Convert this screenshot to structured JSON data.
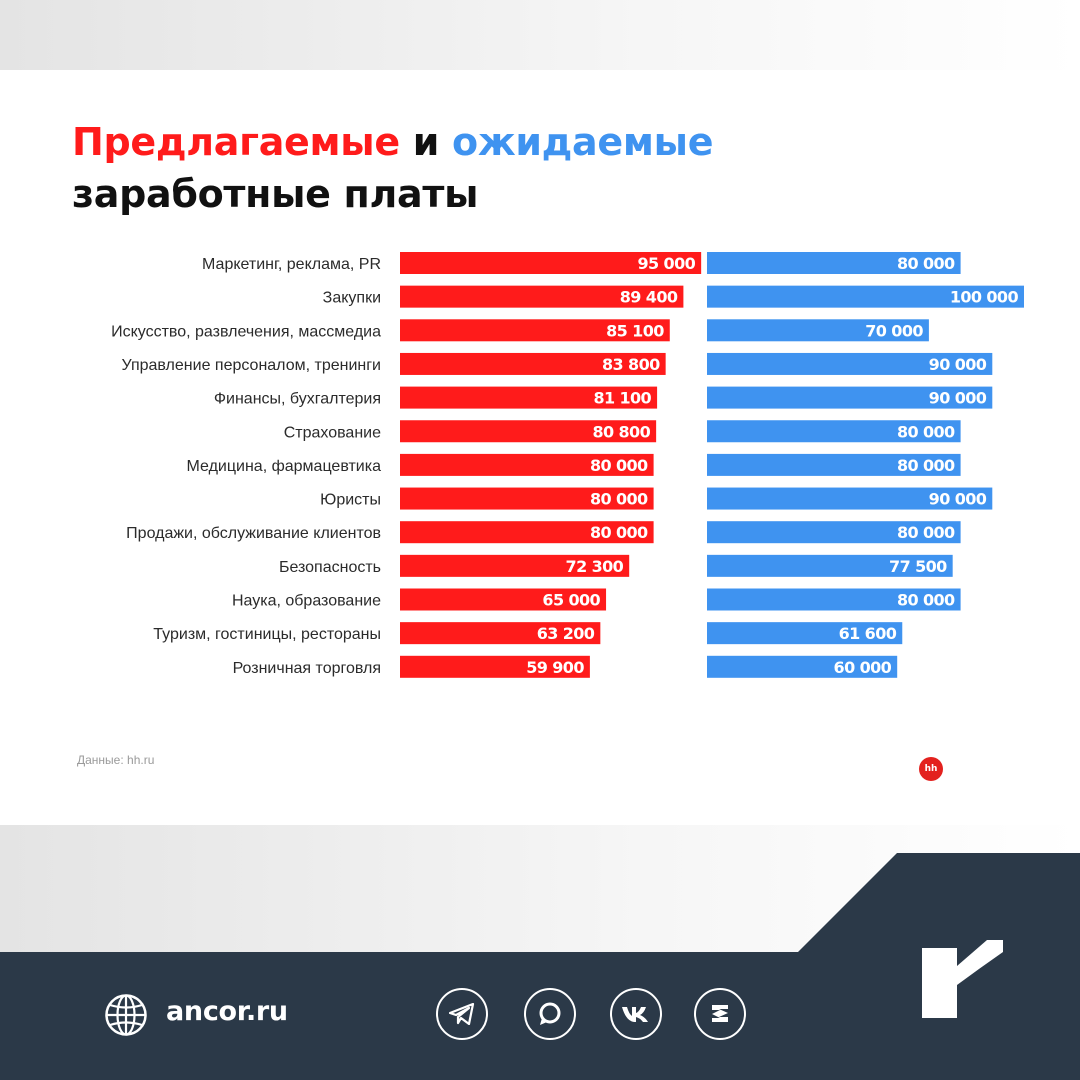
{
  "title": {
    "part1": "Предлагаемые",
    "connector": "и",
    "part2": "ожидаемые",
    "line2": "заработные платы"
  },
  "colors": {
    "offered": "#ff1b1b",
    "expected": "#3f93f0",
    "footer_bg": "#2b3948",
    "hh_brand": "#e3211e"
  },
  "chart_data": {
    "type": "bar",
    "orientation": "horizontal",
    "categories": [
      "Маркетинг, реклама, PR",
      "Закупки",
      "Искусство, развлечения, массмедиа",
      "Управление персоналом, тренинги",
      "Финансы, бухгалтерия",
      "Страхование",
      "Медицина, фармацевтика",
      "Юристы",
      "Продажи, обслуживание клиентов",
      "Безопасность",
      "Наука, образование",
      "Туризм, гостиницы, рестораны",
      "Розничная торговля"
    ],
    "series": [
      {
        "name": "Предлагаемые",
        "values": [
          95000,
          89400,
          85100,
          83800,
          81100,
          80800,
          80000,
          80000,
          80000,
          72300,
          65000,
          63200,
          59900
        ],
        "labels": [
          "95 000",
          "89 400",
          "85 100",
          "83 800",
          "81 100",
          "80 800",
          "80 000",
          "80 000",
          "80 000",
          "72 300",
          "65 000",
          "63 200",
          "59 900"
        ]
      },
      {
        "name": "ожидаемые",
        "values": [
          80000,
          100000,
          70000,
          90000,
          90000,
          80000,
          80000,
          90000,
          80000,
          77500,
          80000,
          61600,
          60000
        ],
        "labels": [
          "80 000",
          "100 000",
          "70 000",
          "90 000",
          "90 000",
          "80 000",
          "80 000",
          "90 000",
          "80 000",
          "77 500",
          "80 000",
          "61 600",
          "60 000"
        ]
      }
    ],
    "title": "Предлагаемые и ожидаемые заработные платы",
    "grid": false,
    "legend": "none"
  },
  "source": "Данные: hh.ru",
  "hh_logo_text": "hh",
  "footer": {
    "website": "ancor.ru",
    "socials": [
      "telegram-icon",
      "dzen-icon",
      "vk-icon",
      "zen-icon"
    ]
  }
}
